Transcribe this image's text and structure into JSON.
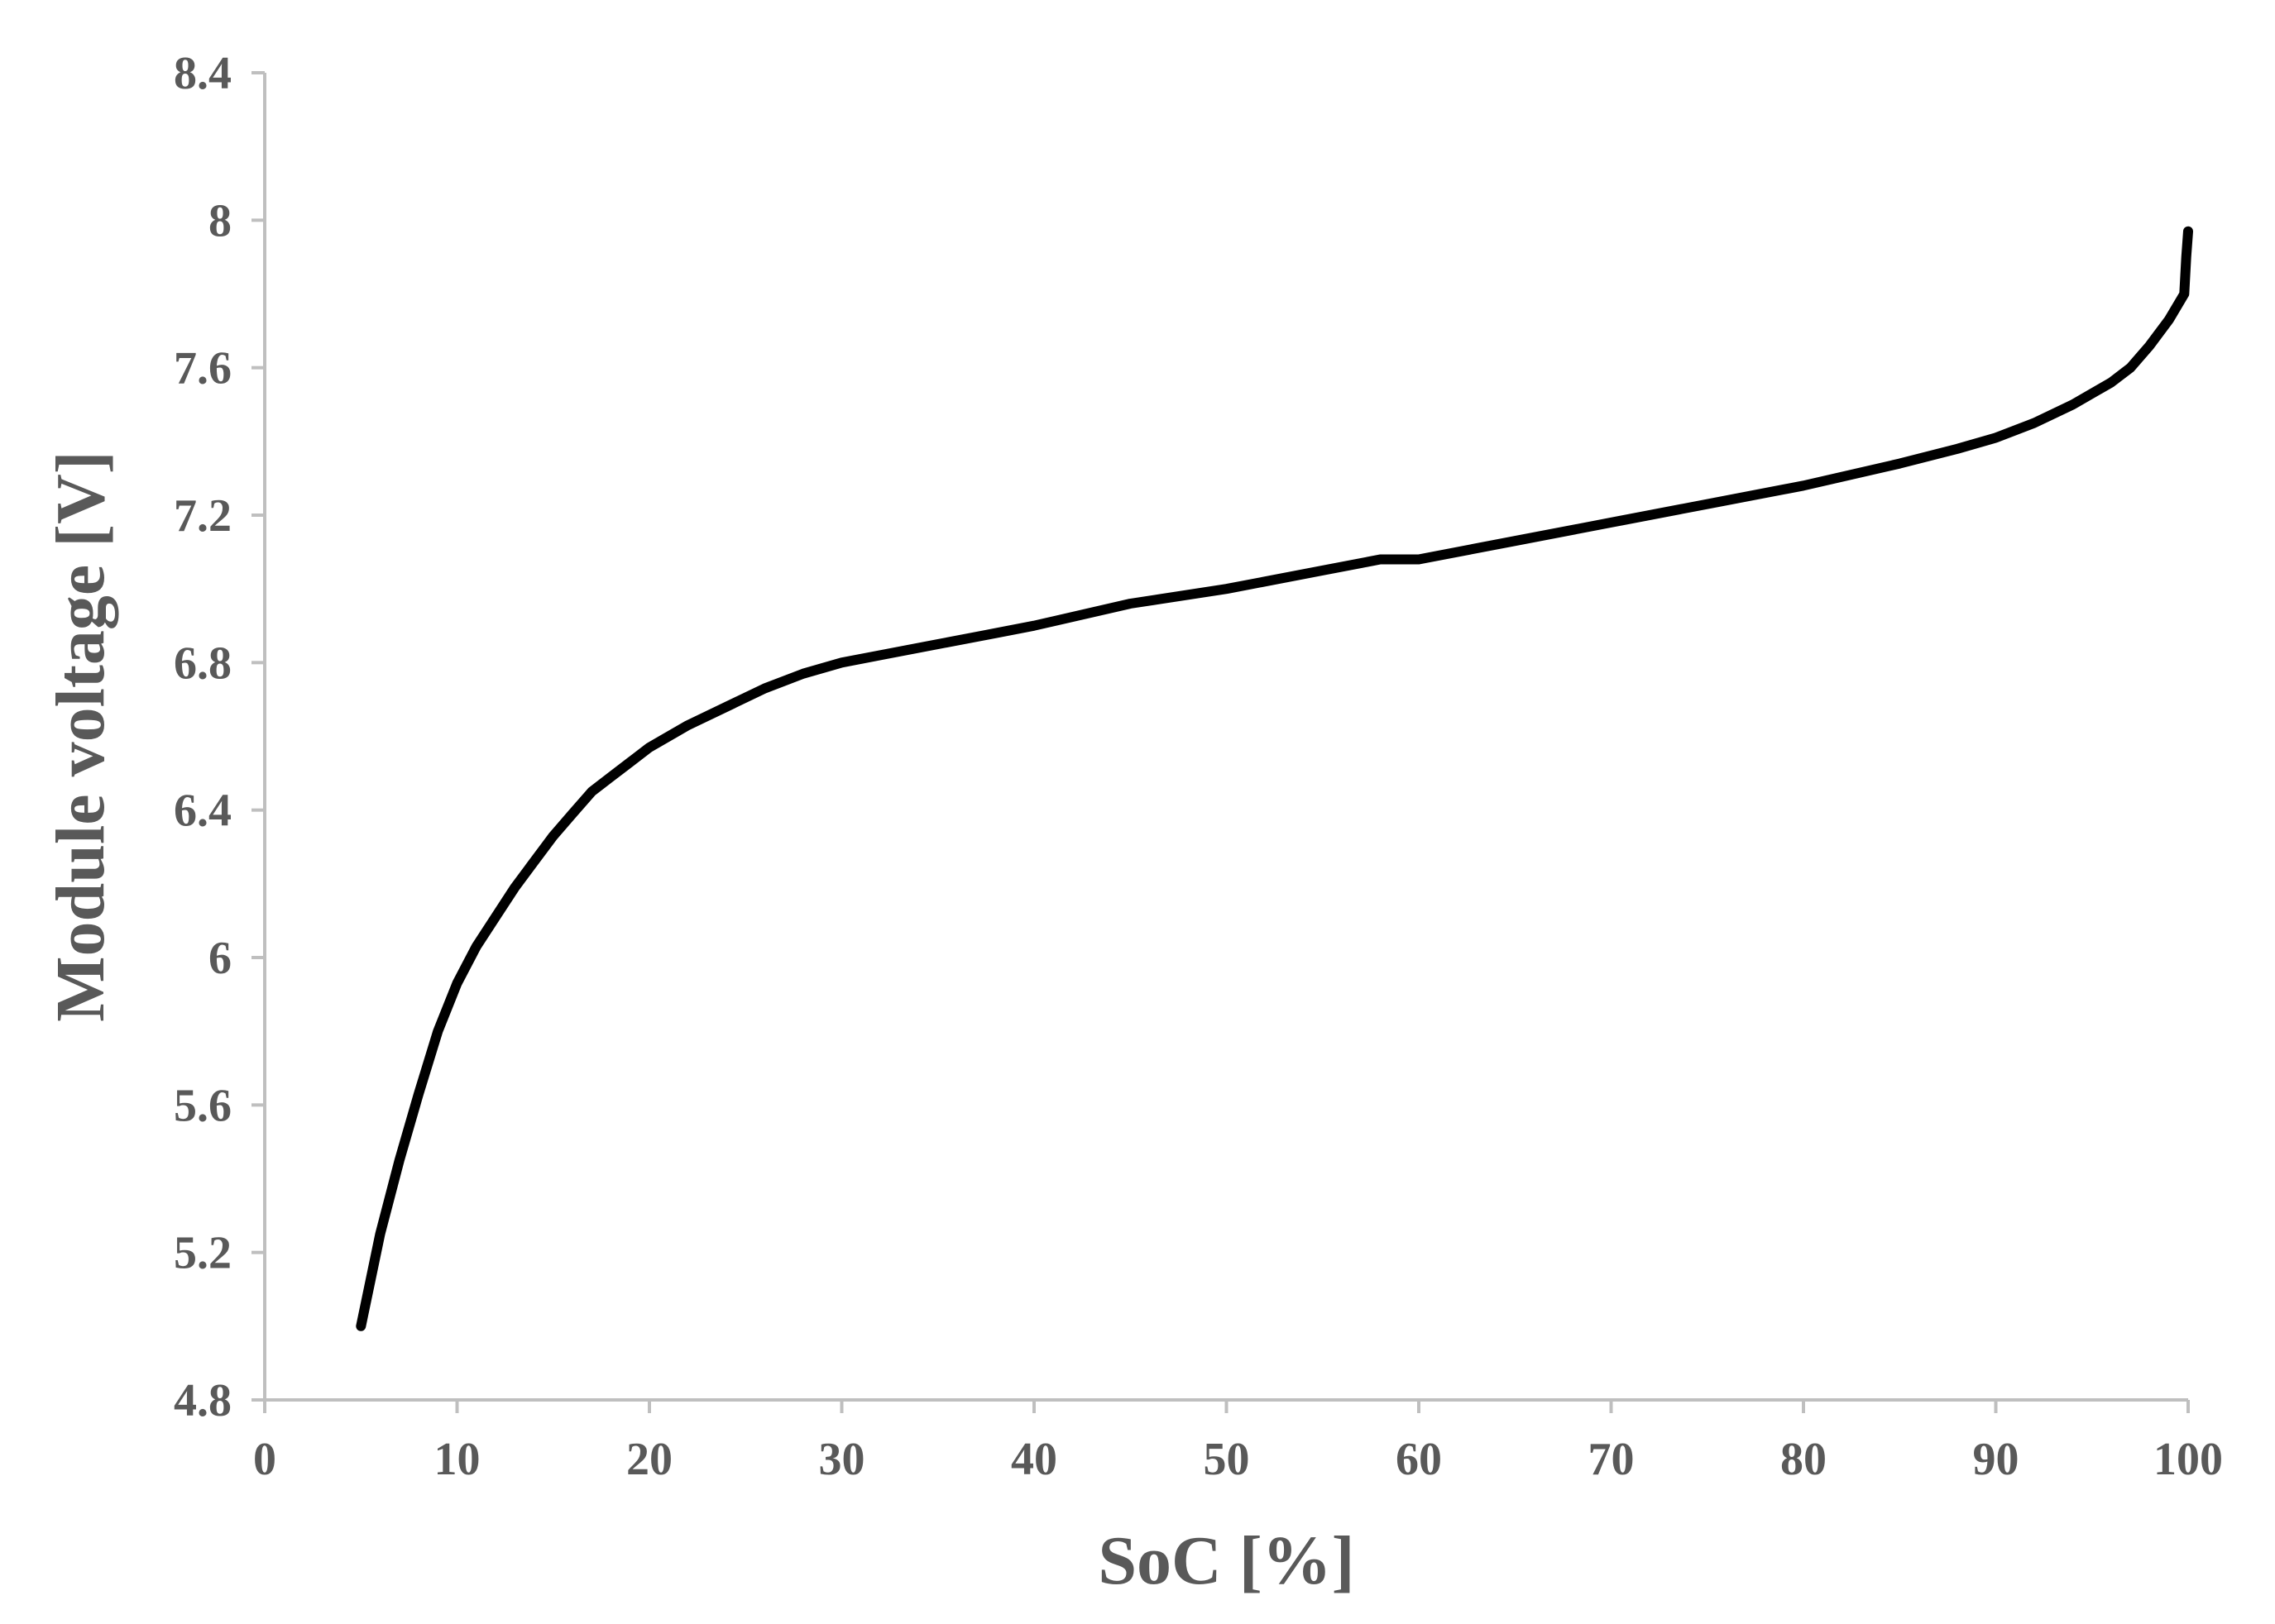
{
  "chart_data": {
    "type": "line",
    "title": "",
    "xlabel": "SoC [%]",
    "ylabel": "Module voltage [V]",
    "xlim": [
      0,
      100
    ],
    "ylim": [
      4.8,
      8.4
    ],
    "x_ticks": [
      "0",
      "10",
      "20",
      "30",
      "40",
      "50",
      "60",
      "70",
      "80",
      "90",
      "100"
    ],
    "y_ticks": [
      "4.8",
      "5.2",
      "5.6",
      "6",
      "6.4",
      "6.8",
      "7.2",
      "7.6",
      "8",
      "8.4"
    ],
    "grid": false,
    "legend": "none",
    "series": [
      {
        "color": "#000000",
        "points": [
          [
            5,
            5.0
          ],
          [
            6,
            5.25
          ],
          [
            7,
            5.45
          ],
          [
            8,
            5.63
          ],
          [
            9,
            5.8
          ],
          [
            10,
            5.93
          ],
          [
            11,
            6.03
          ],
          [
            12,
            6.11
          ],
          [
            13,
            6.19
          ],
          [
            14,
            6.26
          ],
          [
            15,
            6.33
          ],
          [
            16,
            6.39
          ],
          [
            17,
            6.45
          ],
          [
            18,
            6.49
          ],
          [
            19,
            6.53
          ],
          [
            20,
            6.57
          ],
          [
            22,
            6.63
          ],
          [
            24,
            6.68
          ],
          [
            26,
            6.73
          ],
          [
            28,
            6.77
          ],
          [
            30,
            6.8
          ],
          [
            32,
            6.82
          ],
          [
            35,
            6.85
          ],
          [
            38,
            6.88
          ],
          [
            40,
            6.9
          ],
          [
            45,
            6.96
          ],
          [
            50,
            7.0
          ],
          [
            55,
            7.05
          ],
          [
            57,
            7.07
          ],
          [
            58,
            7.08
          ],
          [
            60,
            7.08
          ],
          [
            65,
            7.13
          ],
          [
            70,
            7.18
          ],
          [
            75,
            7.23
          ],
          [
            80,
            7.28
          ],
          [
            85,
            7.34
          ],
          [
            88,
            7.38
          ],
          [
            90,
            7.41
          ],
          [
            92,
            7.45
          ],
          [
            94,
            7.5
          ],
          [
            96,
            7.56
          ],
          [
            97,
            7.6
          ],
          [
            98,
            7.66
          ],
          [
            99,
            7.73
          ],
          [
            99.8,
            7.8
          ],
          [
            99.9,
            7.9
          ],
          [
            100,
            7.97
          ]
        ]
      }
    ]
  }
}
